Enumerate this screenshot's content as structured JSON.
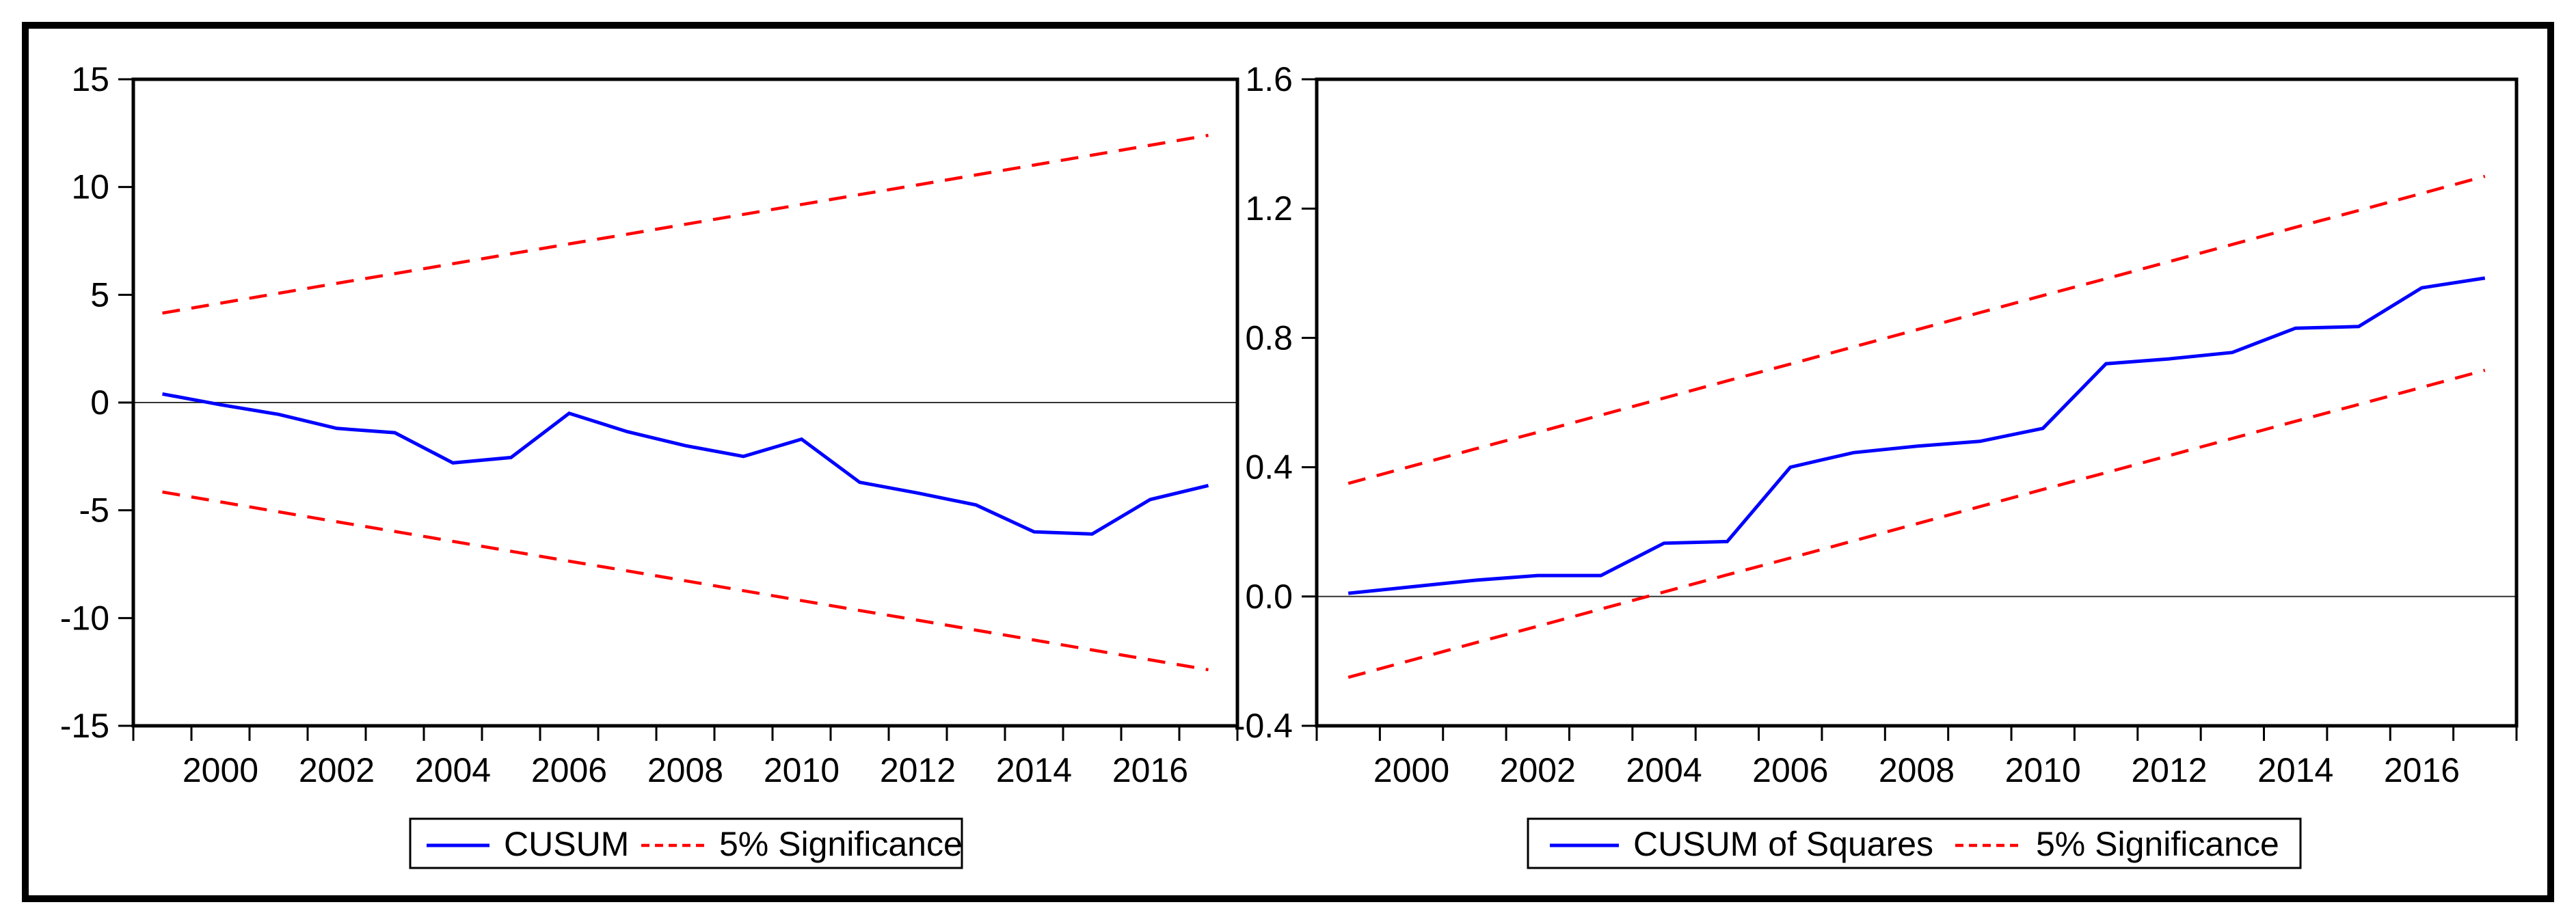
{
  "page": {
    "background": "#ffffff",
    "frame_color": "#000000",
    "axis_color": "#000000",
    "zero_line_color": "#333333"
  },
  "chart_data": [
    {
      "type": "line",
      "panel": "left",
      "title": "",
      "xlabel": "",
      "ylabel": "",
      "x": [
        1999,
        2000,
        2001,
        2002,
        2003,
        2004,
        2005,
        2006,
        2007,
        2008,
        2009,
        2010,
        2011,
        2012,
        2013,
        2014,
        2015,
        2016,
        2017
      ],
      "series": [
        {
          "name": "CUSUM",
          "color": "#0000ff",
          "style": "solid",
          "values": [
            0.4,
            -0.1,
            -0.55,
            -1.2,
            -1.4,
            -2.8,
            -2.55,
            -0.5,
            -1.35,
            -2.0,
            -2.5,
            -1.7,
            -3.7,
            -4.2,
            -4.75,
            -6.0,
            -6.1,
            -4.5,
            -3.85
          ]
        },
        {
          "name": "5% Significance (upper)",
          "color": "#ff0000",
          "style": "dashed",
          "values": [
            4.15,
            4.61,
            5.07,
            5.53,
            5.98,
            6.44,
            6.9,
            7.36,
            7.81,
            8.27,
            8.73,
            9.19,
            9.65,
            10.1,
            10.56,
            11.02,
            11.48,
            11.94,
            12.4
          ]
        },
        {
          "name": "5% Significance (lower)",
          "color": "#ff0000",
          "style": "dashed",
          "values": [
            -4.15,
            -4.61,
            -5.07,
            -5.53,
            -5.98,
            -6.44,
            -6.9,
            -7.36,
            -7.81,
            -8.27,
            -8.73,
            -9.19,
            -9.65,
            -10.1,
            -10.56,
            -11.02,
            -11.48,
            -11.94,
            -12.4
          ]
        }
      ],
      "ylim": [
        -15,
        15
      ],
      "yticks": [
        -15,
        -10,
        -5,
        0,
        5,
        10,
        15
      ],
      "ytick_labels": [
        "-15",
        "-10",
        "-5",
        "0",
        "5",
        "10",
        "15"
      ],
      "xtick_years": [
        2000,
        2002,
        2004,
        2006,
        2008,
        2010,
        2012,
        2014,
        2016
      ],
      "xtick_labels": [
        "2000",
        "2002",
        "2004",
        "2006",
        "2008",
        "2010",
        "2012",
        "2014",
        "2016"
      ],
      "grid": false,
      "zero_line": true,
      "legend_position": "bottom-center",
      "legend": [
        {
          "label": "CUSUM",
          "color": "#0000ff",
          "style": "solid"
        },
        {
          "label": "5% Significance",
          "color": "#ff0000",
          "style": "dashed"
        }
      ]
    },
    {
      "type": "line",
      "panel": "right",
      "title": "",
      "xlabel": "",
      "ylabel": "",
      "x": [
        1999,
        2000,
        2001,
        2002,
        2003,
        2004,
        2005,
        2006,
        2007,
        2008,
        2009,
        2010,
        2011,
        2012,
        2013,
        2014,
        2015,
        2016,
        2017
      ],
      "series": [
        {
          "name": "CUSUM of Squares",
          "color": "#0000ff",
          "style": "solid",
          "values": [
            0.01,
            0.03,
            0.05,
            0.065,
            0.065,
            0.165,
            0.17,
            0.4,
            0.445,
            0.465,
            0.48,
            0.52,
            0.72,
            0.735,
            0.755,
            0.83,
            0.835,
            0.955,
            0.985
          ]
        },
        {
          "name": "5% Significance (upper)",
          "color": "#ff0000",
          "style": "dashed",
          "values": [
            0.35,
            0.403,
            0.456,
            0.508,
            0.561,
            0.614,
            0.667,
            0.719,
            0.772,
            0.825,
            0.878,
            0.931,
            0.983,
            1.036,
            1.089,
            1.142,
            1.194,
            1.247,
            1.3
          ]
        },
        {
          "name": "5% Significance (lower)",
          "color": "#ff0000",
          "style": "dashed",
          "values": [
            -0.25,
            -0.197,
            -0.144,
            -0.092,
            -0.039,
            0.014,
            0.067,
            0.119,
            0.172,
            0.225,
            0.278,
            0.331,
            0.383,
            0.436,
            0.489,
            0.542,
            0.594,
            0.647,
            0.7
          ]
        }
      ],
      "ylim": [
        -0.4,
        1.6
      ],
      "yticks": [
        -0.4,
        0.0,
        0.4,
        0.8,
        1.2,
        1.6
      ],
      "ytick_labels": [
        "-0.4",
        "0.0",
        "0.4",
        "0.8",
        "1.2",
        "1.6"
      ],
      "xtick_years": [
        2000,
        2002,
        2004,
        2006,
        2008,
        2010,
        2012,
        2014,
        2016
      ],
      "xtick_labels": [
        "2000",
        "2002",
        "2004",
        "2006",
        "2008",
        "2010",
        "2012",
        "2014",
        "2016"
      ],
      "grid": false,
      "zero_line": true,
      "legend_position": "bottom-center",
      "legend": [
        {
          "label": "CUSUM of Squares",
          "color": "#0000ff",
          "style": "solid"
        },
        {
          "label": "5% Significance",
          "color": "#ff0000",
          "style": "dashed"
        }
      ]
    }
  ]
}
